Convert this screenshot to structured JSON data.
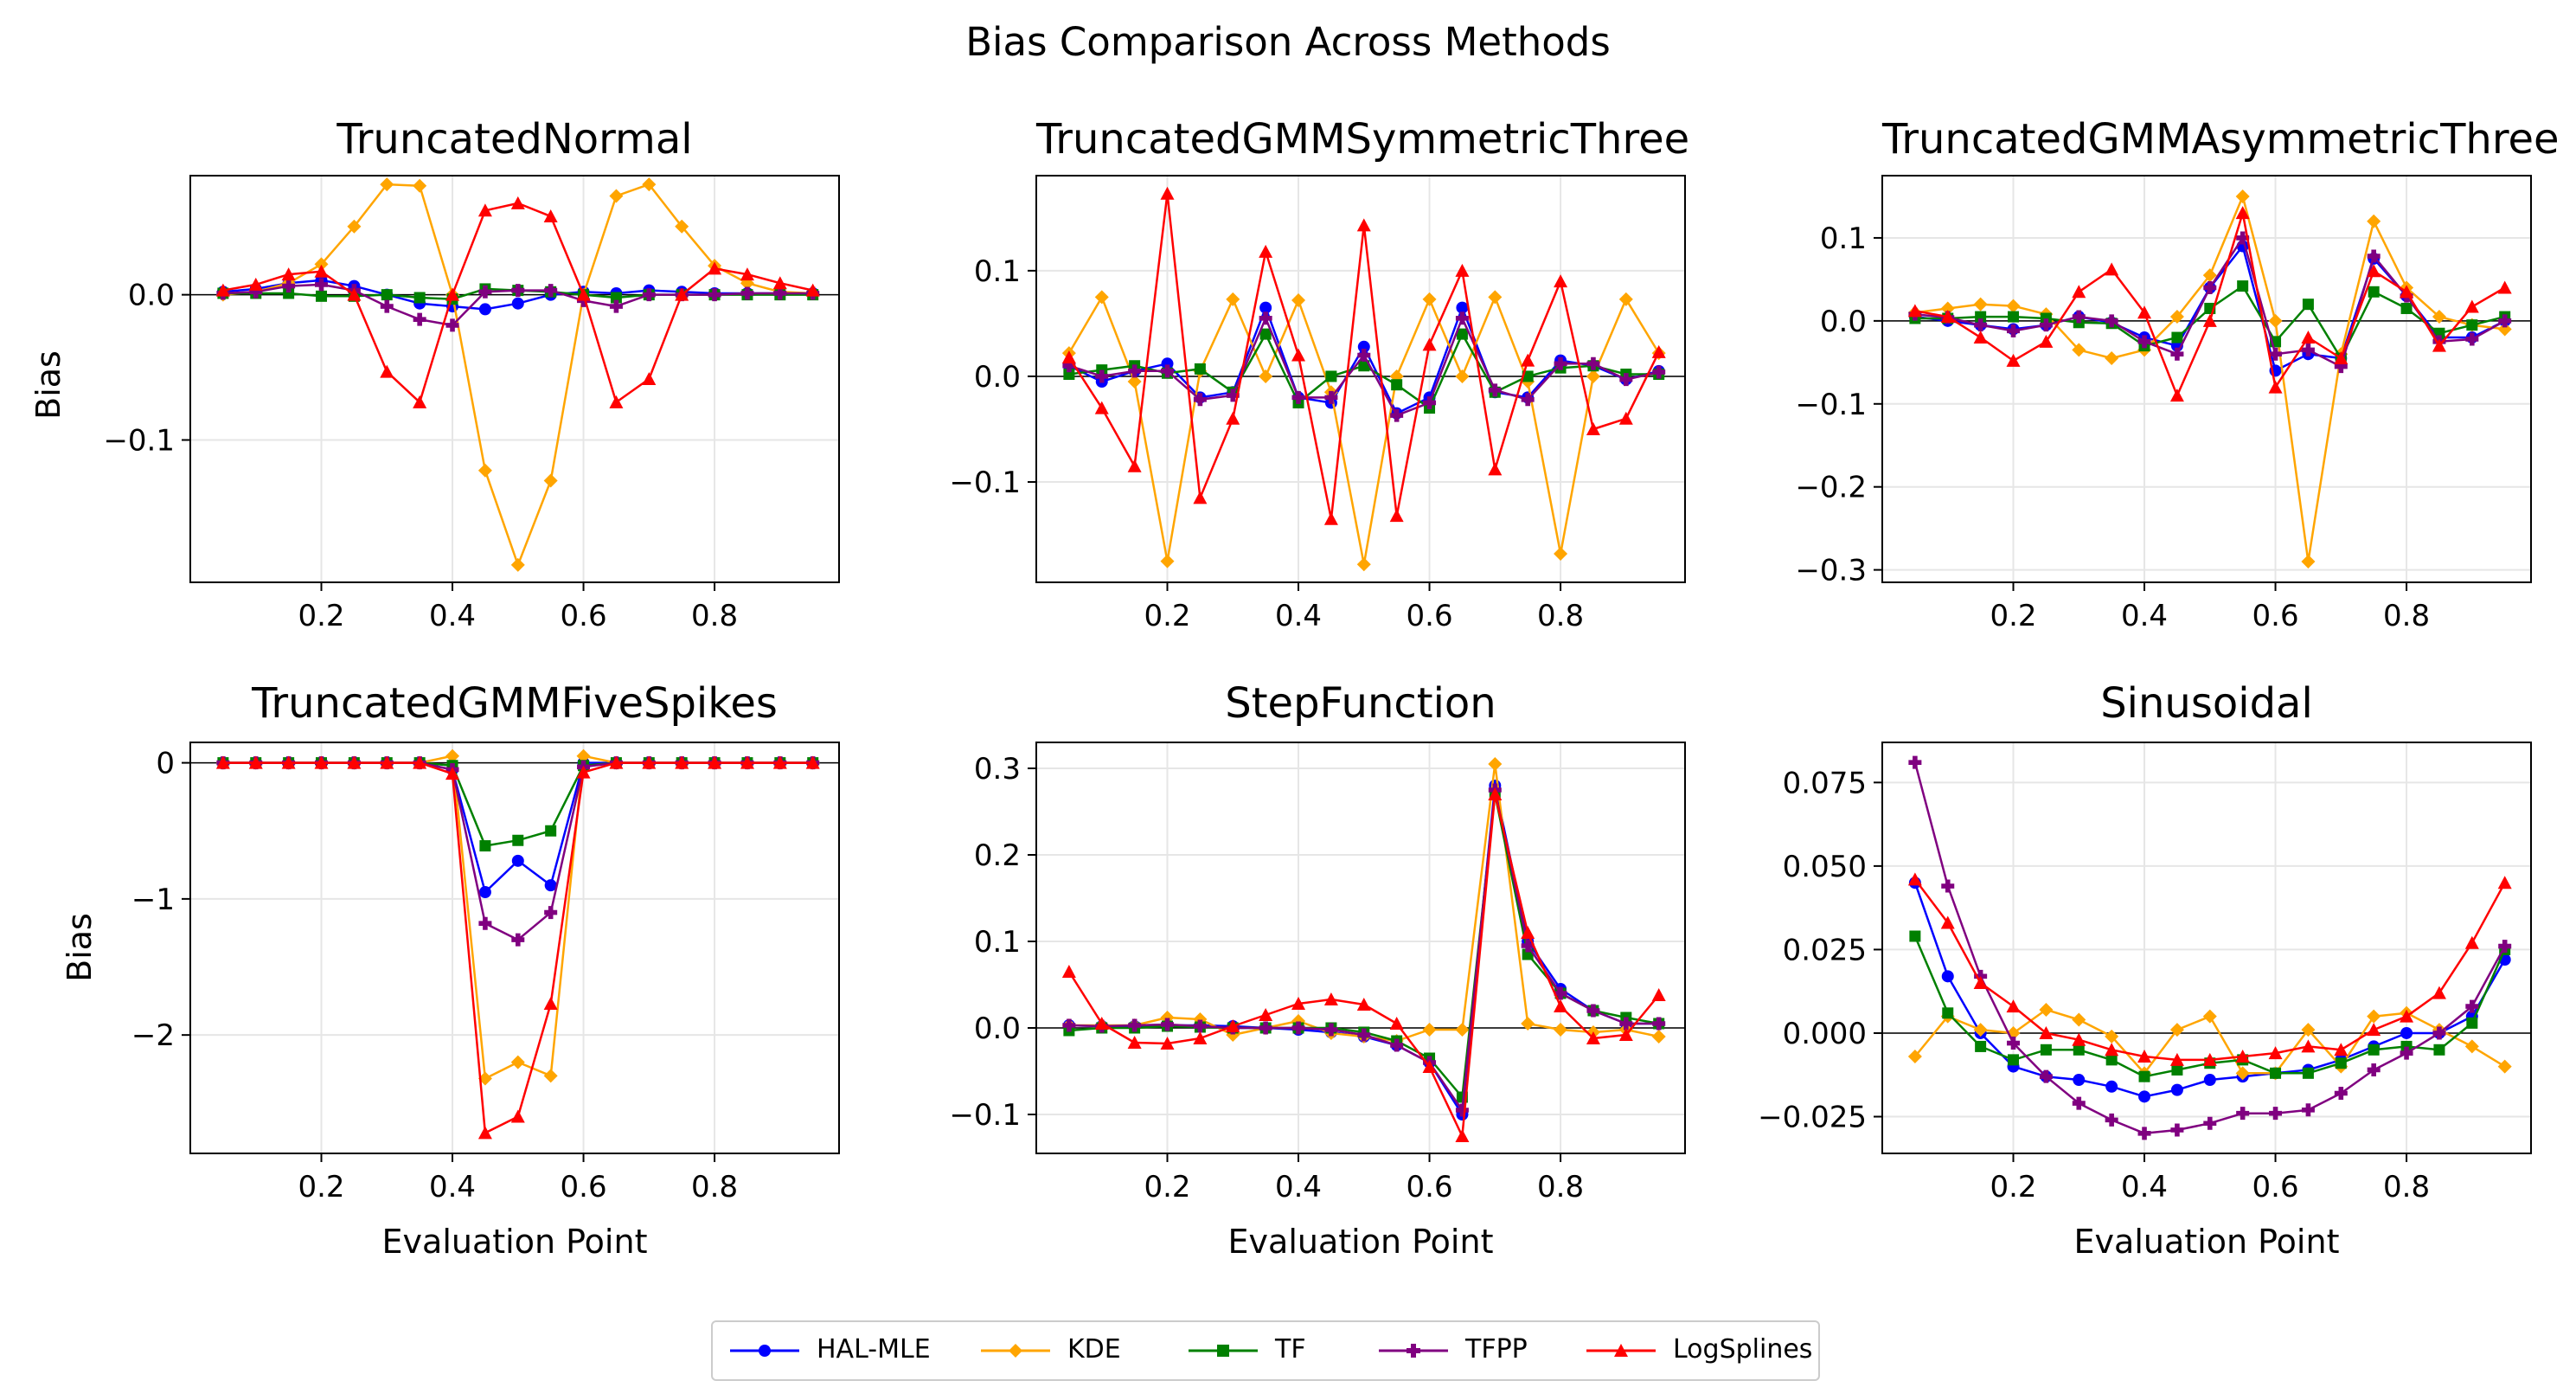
{
  "figure": {
    "suptitle": "Bias Comparison Across Methods",
    "xlabel": "Evaluation Point",
    "ylabel": "Bias"
  },
  "legend": [
    {
      "name": "HAL-MLE",
      "color": "#0000ff",
      "marker": "circle"
    },
    {
      "name": "KDE",
      "color": "#ffa500",
      "marker": "diamond"
    },
    {
      "name": "TF",
      "color": "#008000",
      "marker": "square"
    },
    {
      "name": "TFPP",
      "color": "#800080",
      "marker": "plus"
    },
    {
      "name": "LogSplines",
      "color": "#ff0000",
      "marker": "triangle"
    }
  ],
  "chart_data": [
    {
      "type": "line",
      "title": "TruncatedNormal",
      "xlabel": "",
      "ylabel": "Bias",
      "xlim": [
        0.0,
        0.99
      ],
      "ylim": [
        -0.198,
        0.082
      ],
      "xticks": [
        0.2,
        0.4,
        0.6,
        0.8
      ],
      "xtick_labels": [
        "0.2",
        "0.4",
        "0.6",
        "0.8"
      ],
      "yticks": [
        -0.1,
        0.0
      ],
      "ytick_labels": [
        "−0.1",
        "0.0"
      ],
      "grid": true,
      "zero_line": true,
      "x": [
        0.05,
        0.1,
        0.15,
        0.2,
        0.25,
        0.3,
        0.35,
        0.4,
        0.45,
        0.5,
        0.55,
        0.6,
        0.65,
        0.7,
        0.75,
        0.8,
        0.85,
        0.9,
        0.95
      ],
      "series": [
        {
          "name": "HAL-MLE",
          "values": [
            0.002,
            0.004,
            0.008,
            0.01,
            0.006,
            0.0,
            -0.006,
            -0.008,
            -0.01,
            -0.006,
            0.0,
            0.002,
            0.001,
            0.003,
            0.002,
            0.001,
            0.001,
            0.001,
            0.001
          ]
        },
        {
          "name": "KDE",
          "values": [
            0.0,
            0.002,
            0.008,
            0.021,
            0.047,
            0.076,
            0.075,
            0.0,
            -0.121,
            -0.186,
            -0.128,
            0.0,
            0.068,
            0.076,
            0.047,
            0.02,
            0.008,
            0.002,
            0.001
          ]
        },
        {
          "name": "TF",
          "values": [
            0.001,
            0.001,
            0.001,
            -0.001,
            -0.001,
            0.0,
            -0.002,
            -0.003,
            0.004,
            0.003,
            0.002,
            0.0,
            -0.002,
            0.0,
            0.0,
            0.0,
            0.0,
            0.0,
            0.0
          ]
        },
        {
          "name": "TFPP",
          "values": [
            0.001,
            0.002,
            0.006,
            0.007,
            0.003,
            -0.008,
            -0.017,
            -0.021,
            0.002,
            0.003,
            0.003,
            -0.004,
            -0.008,
            0.0,
            0.0,
            0.0,
            0.001,
            0.001,
            0.001
          ]
        },
        {
          "name": "LogSplines",
          "values": [
            0.003,
            0.007,
            0.014,
            0.016,
            0.0,
            -0.053,
            -0.074,
            0.0,
            0.058,
            0.063,
            0.054,
            0.0,
            -0.074,
            -0.058,
            0.0,
            0.018,
            0.014,
            0.008,
            0.003
          ]
        }
      ]
    },
    {
      "type": "line",
      "title": "TruncatedGMMSymmetricThree",
      "xlabel": "",
      "ylabel": "",
      "xlim": [
        0.0,
        0.99
      ],
      "ylim": [
        -0.195,
        0.19
      ],
      "xticks": [
        0.2,
        0.4,
        0.6,
        0.8
      ],
      "xtick_labels": [
        "0.2",
        "0.4",
        "0.6",
        "0.8"
      ],
      "yticks": [
        -0.1,
        0.0,
        0.1
      ],
      "ytick_labels": [
        "−0.1",
        "0.0",
        "0.1"
      ],
      "grid": true,
      "zero_line": true,
      "x": [
        0.05,
        0.1,
        0.15,
        0.2,
        0.25,
        0.3,
        0.35,
        0.4,
        0.45,
        0.5,
        0.55,
        0.6,
        0.65,
        0.7,
        0.75,
        0.8,
        0.85,
        0.9,
        0.95
      ],
      "series": [
        {
          "name": "HAL-MLE",
          "values": [
            0.01,
            -0.005,
            0.005,
            0.012,
            -0.02,
            -0.015,
            0.065,
            -0.02,
            -0.025,
            0.028,
            -0.035,
            -0.02,
            0.065,
            -0.015,
            -0.02,
            0.015,
            0.01,
            -0.003,
            0.005
          ]
        },
        {
          "name": "KDE",
          "values": [
            0.022,
            0.075,
            -0.005,
            -0.175,
            0.005,
            0.073,
            0.0,
            0.072,
            -0.015,
            -0.178,
            0.0,
            0.073,
            0.0,
            0.075,
            -0.005,
            -0.168,
            0.0,
            0.073,
            0.022
          ]
        },
        {
          "name": "TF",
          "values": [
            0.002,
            0.006,
            0.01,
            0.003,
            0.007,
            -0.015,
            0.04,
            -0.025,
            0.0,
            0.01,
            -0.008,
            -0.03,
            0.04,
            -0.015,
            0.0,
            0.008,
            0.01,
            0.002,
            0.002
          ]
        },
        {
          "name": "TFPP",
          "values": [
            0.01,
            0.0,
            0.005,
            0.005,
            -0.022,
            -0.018,
            0.055,
            -0.02,
            -0.02,
            0.02,
            -0.037,
            -0.025,
            0.055,
            -0.013,
            -0.022,
            0.012,
            0.012,
            -0.003,
            0.004
          ]
        },
        {
          "name": "LogSplines",
          "values": [
            0.018,
            -0.03,
            -0.085,
            0.173,
            -0.115,
            -0.04,
            0.118,
            0.02,
            -0.135,
            0.143,
            -0.132,
            0.03,
            0.1,
            -0.088,
            0.015,
            0.09,
            -0.05,
            -0.04,
            0.023
          ]
        }
      ]
    },
    {
      "type": "line",
      "title": "TruncatedGMMAsymmetricThree",
      "xlabel": "",
      "ylabel": "",
      "xlim": [
        0.0,
        0.99
      ],
      "ylim": [
        -0.315,
        0.175
      ],
      "xticks": [
        0.2,
        0.4,
        0.6,
        0.8
      ],
      "xtick_labels": [
        "0.2",
        "0.4",
        "0.6",
        "0.8"
      ],
      "yticks": [
        -0.3,
        -0.2,
        -0.1,
        0.0,
        0.1
      ],
      "ytick_labels": [
        "−0.3",
        "−0.2",
        "−0.1",
        "0.0",
        "0.1"
      ],
      "grid": true,
      "zero_line": true,
      "x": [
        0.05,
        0.1,
        0.15,
        0.2,
        0.25,
        0.3,
        0.35,
        0.4,
        0.45,
        0.5,
        0.55,
        0.6,
        0.65,
        0.7,
        0.75,
        0.8,
        0.85,
        0.9,
        0.95
      ],
      "series": [
        {
          "name": "HAL-MLE",
          "values": [
            0.005,
            0.0,
            -0.005,
            -0.01,
            -0.005,
            0.005,
            -0.002,
            -0.02,
            -0.03,
            0.04,
            0.09,
            -0.06,
            -0.04,
            -0.045,
            0.075,
            0.03,
            -0.02,
            -0.02,
            0.0
          ]
        },
        {
          "name": "KDE",
          "values": [
            0.01,
            0.015,
            0.02,
            0.018,
            0.008,
            -0.035,
            -0.045,
            -0.035,
            0.005,
            0.055,
            0.15,
            0.0,
            -0.29,
            -0.04,
            0.12,
            0.04,
            0.005,
            -0.005,
            -0.01
          ]
        },
        {
          "name": "TF",
          "values": [
            0.003,
            0.003,
            0.005,
            0.005,
            0.003,
            -0.002,
            -0.003,
            -0.03,
            -0.02,
            0.015,
            0.042,
            -0.025,
            0.02,
            -0.045,
            0.035,
            0.015,
            -0.015,
            -0.005,
            0.005
          ]
        },
        {
          "name": "TFPP",
          "values": [
            0.008,
            0.004,
            -0.005,
            -0.012,
            -0.005,
            0.005,
            0.0,
            -0.025,
            -0.04,
            0.04,
            0.1,
            -0.04,
            -0.035,
            -0.055,
            0.078,
            0.03,
            -0.025,
            -0.022,
            0.0
          ]
        },
        {
          "name": "LogSplines",
          "values": [
            0.012,
            0.005,
            -0.02,
            -0.048,
            -0.025,
            0.035,
            0.062,
            0.01,
            -0.09,
            0.0,
            0.13,
            -0.08,
            -0.02,
            -0.045,
            0.06,
            0.035,
            -0.03,
            0.017,
            0.04
          ]
        }
      ]
    },
    {
      "type": "line",
      "title": "TruncatedGMMFiveSpikes",
      "xlabel": "Evaluation Point",
      "ylabel": "Bias",
      "xlim": [
        0.0,
        0.99
      ],
      "ylim": [
        -2.87,
        0.15
      ],
      "xticks": [
        0.2,
        0.4,
        0.6,
        0.8
      ],
      "xtick_labels": [
        "0.2",
        "0.4",
        "0.6",
        "0.8"
      ],
      "yticks": [
        -2,
        -1,
        0
      ],
      "ytick_labels": [
        "−2",
        "−1",
        "0"
      ],
      "grid": true,
      "zero_line": true,
      "x": [
        0.05,
        0.1,
        0.15,
        0.2,
        0.25,
        0.3,
        0.35,
        0.4,
        0.45,
        0.5,
        0.55,
        0.6,
        0.65,
        0.7,
        0.75,
        0.8,
        0.85,
        0.9,
        0.95
      ],
      "series": [
        {
          "name": "HAL-MLE",
          "values": [
            0,
            0,
            0,
            0,
            0,
            0,
            0,
            -0.05,
            -0.95,
            -0.72,
            -0.9,
            0.0,
            0,
            0,
            0,
            0,
            0,
            0,
            0
          ]
        },
        {
          "name": "KDE",
          "values": [
            0,
            0,
            0,
            0,
            0,
            0,
            0,
            0.05,
            -2.32,
            -2.2,
            -2.3,
            0.05,
            0,
            0,
            0,
            0,
            0,
            0,
            0
          ]
        },
        {
          "name": "TF",
          "values": [
            0,
            0,
            0,
            0,
            0,
            0,
            0,
            -0.02,
            -0.61,
            -0.57,
            -0.5,
            -0.02,
            0,
            0,
            0,
            0,
            0,
            0,
            0
          ]
        },
        {
          "name": "TFPP",
          "values": [
            0,
            0,
            0,
            0,
            0,
            0,
            0,
            -0.05,
            -1.18,
            -1.3,
            -1.1,
            -0.03,
            0,
            0,
            0,
            0,
            0,
            0,
            0
          ]
        },
        {
          "name": "LogSplines",
          "values": [
            0,
            0,
            0,
            0,
            0,
            0,
            0,
            -0.08,
            -2.72,
            -2.6,
            -1.77,
            -0.07,
            0,
            0,
            0,
            0,
            0,
            0,
            0
          ]
        }
      ]
    },
    {
      "type": "line",
      "title": "StepFunction",
      "xlabel": "Evaluation Point",
      "ylabel": "",
      "xlim": [
        0.0,
        0.99
      ],
      "ylim": [
        -0.145,
        0.33
      ],
      "xticks": [
        0.2,
        0.4,
        0.6,
        0.8
      ],
      "xtick_labels": [
        "0.2",
        "0.4",
        "0.6",
        "0.8"
      ],
      "yticks": [
        -0.1,
        0.0,
        0.1,
        0.2,
        0.3
      ],
      "ytick_labels": [
        "−0.1",
        "0.0",
        "0.1",
        "0.2",
        "0.3"
      ],
      "grid": true,
      "zero_line": true,
      "x": [
        0.05,
        0.1,
        0.15,
        0.2,
        0.25,
        0.3,
        0.35,
        0.4,
        0.45,
        0.5,
        0.55,
        0.6,
        0.65,
        0.7,
        0.75,
        0.8,
        0.85,
        0.9,
        0.95
      ],
      "series": [
        {
          "name": "HAL-MLE",
          "values": [
            0.003,
            0.002,
            0.002,
            0.003,
            0.003,
            0.002,
            0.0,
            -0.002,
            -0.005,
            -0.01,
            -0.02,
            -0.04,
            -0.1,
            0.28,
            0.1,
            0.045,
            0.02,
            0.005,
            0.005
          ]
        },
        {
          "name": "KDE",
          "values": [
            0.003,
            0.003,
            0.003,
            0.012,
            0.01,
            -0.008,
            0.0,
            0.008,
            -0.006,
            -0.01,
            -0.015,
            -0.002,
            -0.002,
            0.305,
            0.005,
            -0.002,
            -0.005,
            -0.002,
            -0.01
          ]
        },
        {
          "name": "TF",
          "values": [
            -0.003,
            0.0,
            0.0,
            0.002,
            0.001,
            0.0,
            0.0,
            0.0,
            0.0,
            -0.005,
            -0.015,
            -0.035,
            -0.08,
            0.27,
            0.085,
            0.04,
            0.02,
            0.012,
            0.005
          ]
        },
        {
          "name": "TFPP",
          "values": [
            0.003,
            0.002,
            0.003,
            0.004,
            0.002,
            0.0,
            0.0,
            0.0,
            -0.002,
            -0.008,
            -0.02,
            -0.04,
            -0.095,
            0.275,
            0.095,
            0.04,
            0.02,
            0.005,
            0.005
          ]
        },
        {
          "name": "LogSplines",
          "values": [
            0.065,
            0.005,
            -0.017,
            -0.018,
            -0.012,
            0.002,
            0.015,
            0.028,
            0.033,
            0.027,
            0.005,
            -0.045,
            -0.125,
            0.27,
            0.11,
            0.025,
            -0.012,
            -0.008,
            0.038
          ]
        }
      ]
    },
    {
      "type": "line",
      "title": "Sinusoidal",
      "xlabel": "Evaluation Point",
      "ylabel": "",
      "xlim": [
        0.0,
        0.99
      ],
      "ylim": [
        -0.036,
        0.087
      ],
      "xticks": [
        0.2,
        0.4,
        0.6,
        0.8
      ],
      "xtick_labels": [
        "0.2",
        "0.4",
        "0.6",
        "0.8"
      ],
      "yticks": [
        -0.025,
        0.0,
        0.025,
        0.05,
        0.075
      ],
      "ytick_labels": [
        "−0.025",
        "0.000",
        "0.025",
        "0.050",
        "0.075"
      ],
      "grid": true,
      "zero_line": true,
      "x": [
        0.05,
        0.1,
        0.15,
        0.2,
        0.25,
        0.3,
        0.35,
        0.4,
        0.45,
        0.5,
        0.55,
        0.6,
        0.65,
        0.7,
        0.75,
        0.8,
        0.85,
        0.9,
        0.95
      ],
      "series": [
        {
          "name": "HAL-MLE",
          "values": [
            0.045,
            0.017,
            0.0,
            -0.01,
            -0.013,
            -0.014,
            -0.016,
            -0.019,
            -0.017,
            -0.014,
            -0.013,
            -0.012,
            -0.011,
            -0.008,
            -0.004,
            0.0,
            0.0,
            0.005,
            0.022
          ]
        },
        {
          "name": "KDE",
          "values": [
            -0.007,
            0.005,
            0.001,
            0.0,
            0.007,
            0.004,
            -0.001,
            -0.012,
            0.001,
            0.005,
            -0.012,
            -0.012,
            0.001,
            -0.01,
            0.005,
            0.006,
            0.001,
            -0.004,
            -0.01
          ]
        },
        {
          "name": "TF",
          "values": [
            0.029,
            0.006,
            -0.004,
            -0.008,
            -0.005,
            -0.005,
            -0.008,
            -0.013,
            -0.011,
            -0.009,
            -0.008,
            -0.012,
            -0.012,
            -0.009,
            -0.005,
            -0.004,
            -0.005,
            0.003,
            0.025
          ]
        },
        {
          "name": "TFPP",
          "values": [
            0.081,
            0.044,
            0.017,
            -0.003,
            -0.013,
            -0.021,
            -0.026,
            -0.03,
            -0.029,
            -0.027,
            -0.024,
            -0.024,
            -0.023,
            -0.018,
            -0.011,
            -0.006,
            0.0,
            0.008,
            0.026
          ]
        },
        {
          "name": "LogSplines",
          "values": [
            0.046,
            0.033,
            0.015,
            0.008,
            0.0,
            -0.002,
            -0.005,
            -0.007,
            -0.008,
            -0.008,
            -0.007,
            -0.006,
            -0.004,
            -0.005,
            0.001,
            0.005,
            0.012,
            0.027,
            0.045
          ]
        }
      ]
    }
  ]
}
